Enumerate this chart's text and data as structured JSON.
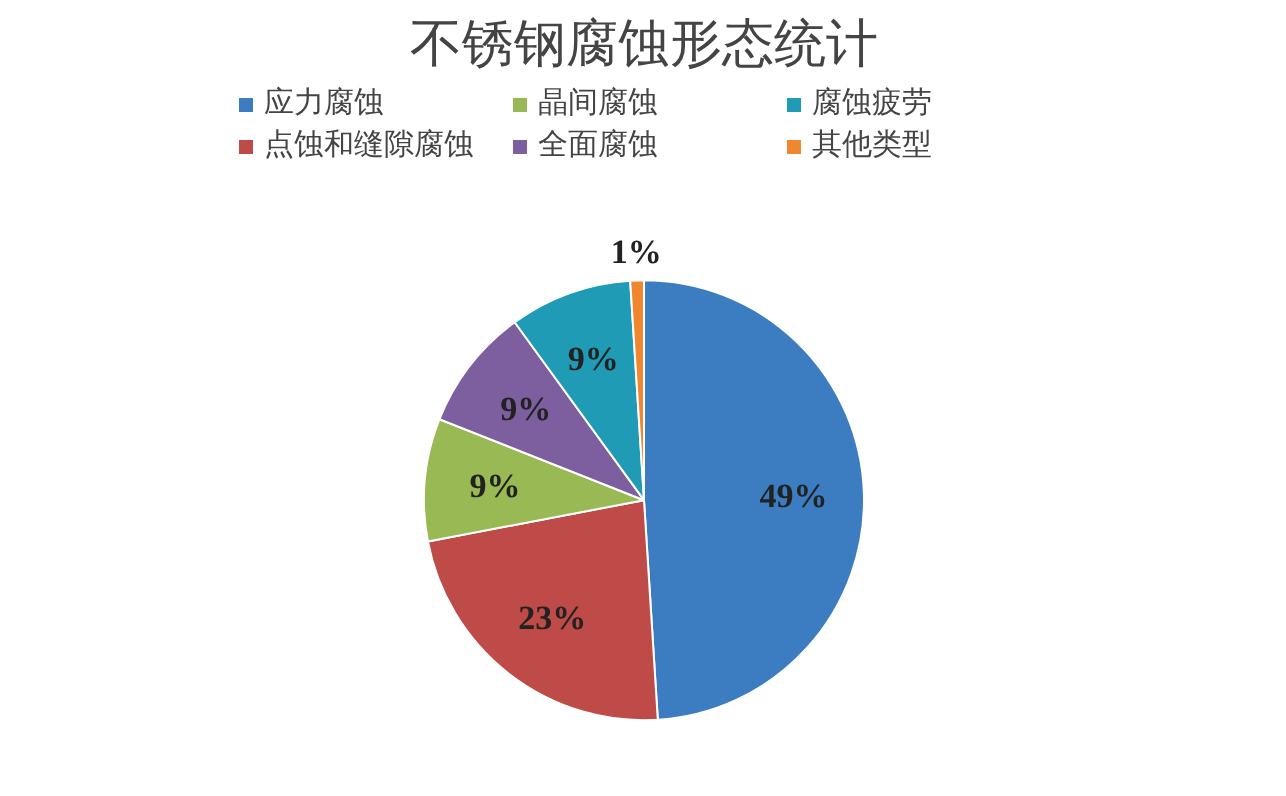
{
  "chart_data": {
    "type": "pie",
    "title": "不锈钢腐蚀形态统计",
    "categories": [
      "应力腐蚀",
      "点蚀和缝隙腐蚀",
      "晶间腐蚀",
      "全面腐蚀",
      "腐蚀疲劳",
      "其他类型"
    ],
    "values": [
      49,
      23,
      9,
      9,
      9,
      1
    ],
    "colors": [
      "#3b7dc0",
      "#be4b48",
      "#98b954",
      "#7d5fa0",
      "#1f9bb5",
      "#f0862e"
    ],
    "value_labels": [
      "49%",
      "23%",
      "9%",
      "9%",
      "9%",
      "1%"
    ],
    "legend": "top"
  }
}
